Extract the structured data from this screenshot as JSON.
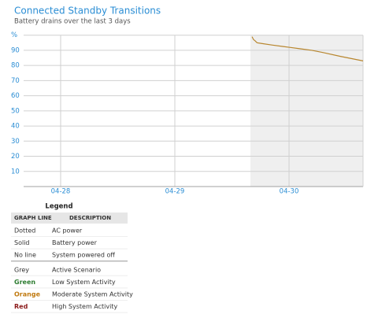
{
  "chart_data": {
    "type": "line",
    "title": "Connected Standby Transitions",
    "subtitle": "Battery drains over the last 3 days",
    "y_label": "%",
    "x": [
      1.676,
      1.69,
      1.7,
      1.72,
      1.76,
      1.85,
      1.95,
      2.0,
      2.1,
      2.2,
      2.3,
      2.45,
      2.55,
      2.648
    ],
    "series": [
      {
        "name": "Moderate System Activity",
        "color": "#b8862e",
        "values": [
          99,
          97,
          96.5,
          95,
          94.5,
          93.5,
          92.5,
          92,
          91,
          90,
          88.5,
          86,
          84.5,
          83
        ]
      }
    ],
    "xlim": [
      -0.324,
      2.648
    ],
    "xticks": [
      {
        "value": 0,
        "label": "04-28"
      },
      {
        "value": 1,
        "label": "04-29"
      },
      {
        "value": 2,
        "label": "04-30"
      }
    ],
    "ylim": [
      0,
      100
    ],
    "yticks": [
      10,
      20,
      30,
      40,
      50,
      60,
      70,
      80,
      90
    ],
    "grid": true,
    "band_x": [
      1.662,
      2.648
    ],
    "band_color": "#efefef"
  },
  "legend_table": {
    "title": "Legend",
    "header": [
      "GRAPH LINE",
      "DESCRIPTION"
    ],
    "rows": [
      [
        "Dotted",
        "AC power"
      ],
      [
        "Solid",
        "Battery power"
      ],
      [
        "No line",
        "System powered off"
      ],
      [
        "Grey",
        "Active Scenario"
      ],
      [
        "Green",
        "Low System Activity"
      ],
      [
        "Orange",
        "Moderate System Activity"
      ],
      [
        "Red",
        "High System Activity"
      ]
    ]
  }
}
